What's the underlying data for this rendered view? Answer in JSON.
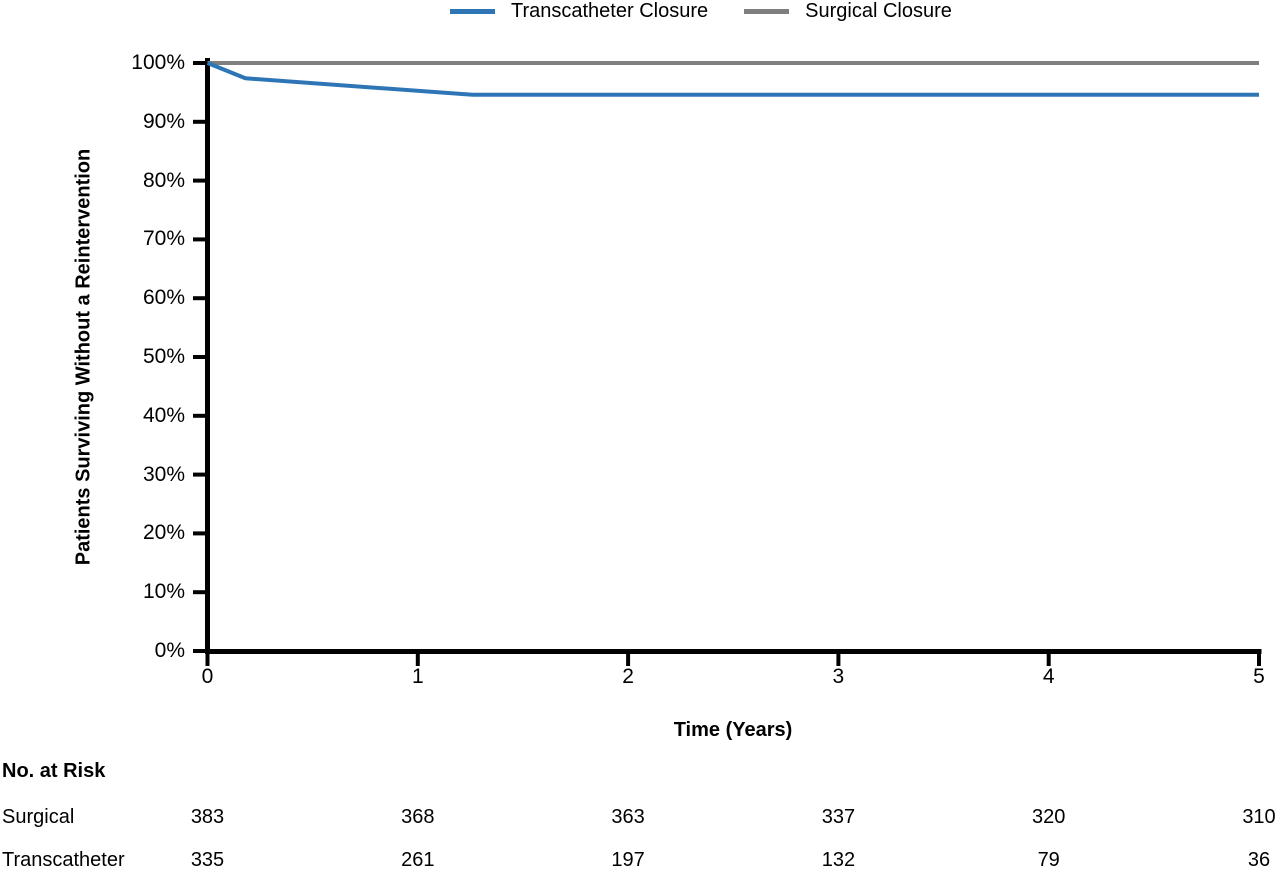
{
  "legend": {
    "items": [
      {
        "label": "Transcatheter Closure",
        "color": "#2E75B6"
      },
      {
        "label": "Surgical Closure",
        "color": "#7F7F7F"
      }
    ]
  },
  "axes": {
    "x_tick_labels": [
      "0",
      "1",
      "2",
      "3",
      "4",
      "5"
    ],
    "y_tick_labels": [
      "0%",
      "10%",
      "20%",
      "30%",
      "40%",
      "50%",
      "60%",
      "70%",
      "80%",
      "90%",
      "100%"
    ]
  },
  "chart_data": {
    "type": "line",
    "title": "",
    "xlabel": "Time (Years)",
    "ylabel": "Patients Surviving Without a Reintervention",
    "xlim": [
      0,
      5
    ],
    "ylim": [
      0,
      100
    ],
    "x_ticks": [
      0,
      1,
      2,
      3,
      4,
      5
    ],
    "y_ticks_percent": [
      0,
      10,
      20,
      30,
      40,
      50,
      60,
      70,
      80,
      90,
      100
    ],
    "grid": false,
    "legend_position": "top-center",
    "series": [
      {
        "name": "Surgical Closure",
        "color": "#7F7F7F",
        "points": [
          [
            0,
            100
          ],
          [
            5,
            100
          ]
        ]
      },
      {
        "name": "Transcatheter Closure",
        "color": "#2E75B6",
        "points": [
          [
            0,
            100
          ],
          [
            0.18,
            97.4
          ],
          [
            1.26,
            94.6
          ],
          [
            5,
            94.6
          ]
        ]
      }
    ]
  },
  "risk_table": {
    "title": "No. at Risk",
    "columns_time_years": [
      0,
      1,
      2,
      3,
      4,
      5
    ],
    "rows": [
      {
        "label": "Surgical",
        "values": [
          "383",
          "368",
          "363",
          "337",
          "320",
          "310"
        ]
      },
      {
        "label": "Transcatheter",
        "values": [
          "335",
          "261",
          "197",
          "132",
          "79",
          "36"
        ]
      }
    ]
  },
  "colors": {
    "axis": "#000000",
    "text": "#000000",
    "background": "#FFFFFF"
  }
}
